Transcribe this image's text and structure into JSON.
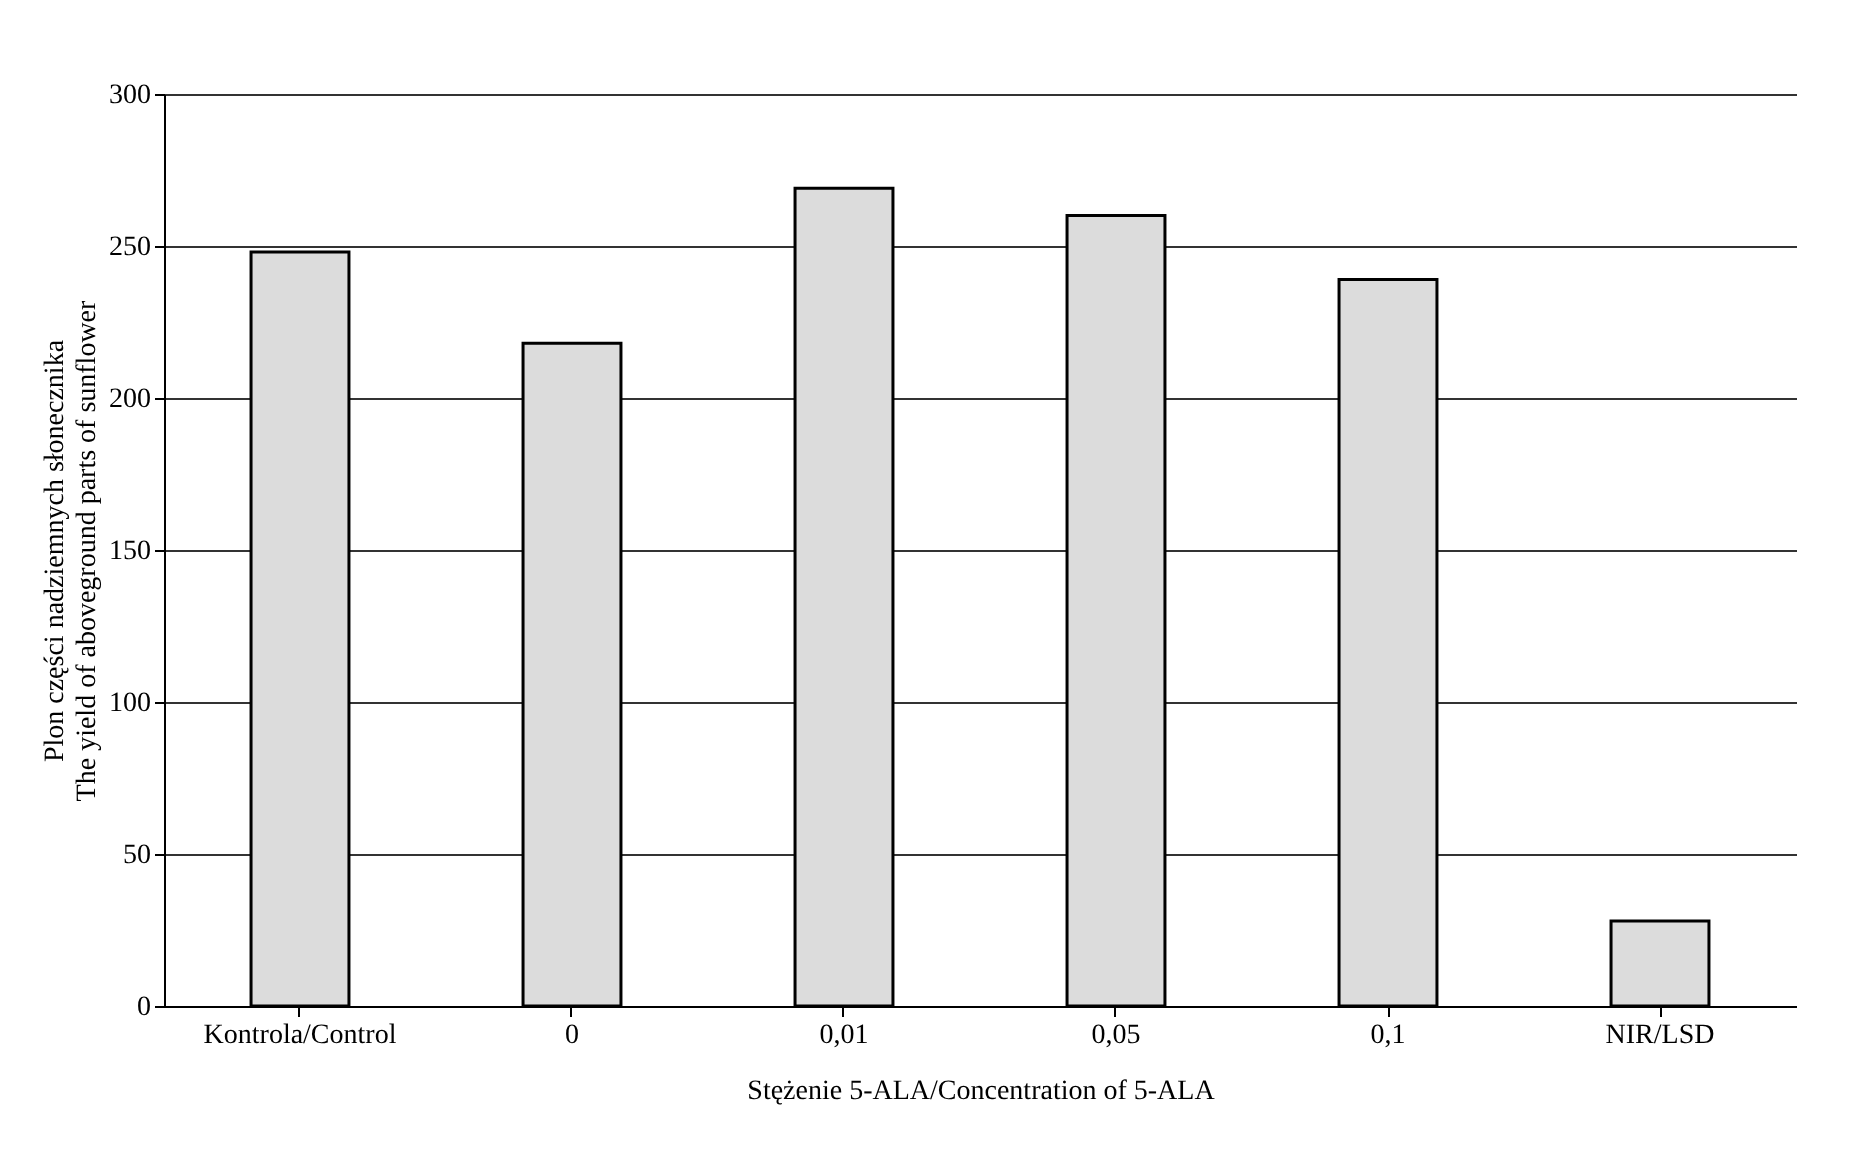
{
  "chart_data": {
    "type": "bar",
    "xlabel": "Stężenie 5-ALA/Concentration of 5-ALA",
    "ylabel": [
      "Plon części nadziemnych słonecznika",
      "The yield of aboveground parts of sunflower"
    ],
    "categories": [
      "Kontrola/Control",
      "0",
      "0,01",
      "0,05",
      "0,1",
      "NIR/LSD"
    ],
    "values": [
      248,
      218,
      269,
      260,
      239,
      28
    ],
    "color": "#dcdcdc",
    "ylim": [
      0,
      300
    ],
    "yticks": [
      0,
      50,
      100,
      150,
      200,
      250,
      300
    ],
    "grid": "y"
  }
}
